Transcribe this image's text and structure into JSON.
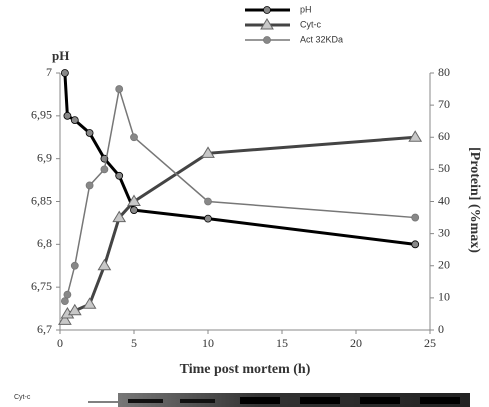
{
  "chart_data": {
    "type": "line",
    "x": [
      0.33,
      0.5,
      1,
      2,
      3,
      4,
      5,
      10,
      24
    ],
    "series": [
      {
        "name": "pH",
        "color": "#000000",
        "marker": "circle",
        "width": 3,
        "axis": "y",
        "values": [
          7,
          6.95,
          6.945,
          6.93,
          6.9,
          6.88,
          6.84,
          6.83,
          6.8
        ]
      },
      {
        "name": "Cyt-c",
        "color": "#444444",
        "marker": "triangle",
        "width": 3,
        "axis": "y2",
        "values": [
          3,
          5,
          6,
          8,
          20,
          35,
          40,
          55,
          60
        ]
      },
      {
        "name": "Act  32KDa",
        "color": "#777777",
        "marker": "circle",
        "width": 1.5,
        "axis": "y2",
        "values": [
          9,
          11,
          20,
          45,
          50,
          75,
          60,
          40,
          35
        ]
      }
    ],
    "xlim": [
      0,
      25
    ],
    "xticks": [
      0,
      5,
      10,
      15,
      20,
      25
    ],
    "ylim": [
      6.7,
      7
    ],
    "yticks": [
      {
        "value": 6.7,
        "label": "6,7"
      },
      {
        "value": 6.75,
        "label": "6,75"
      },
      {
        "value": 6.8,
        "label": "6,8"
      },
      {
        "value": 6.85,
        "label": "6,85"
      },
      {
        "value": 6.9,
        "label": "6,9"
      },
      {
        "value": 6.95,
        "label": "6,95"
      },
      7
    ],
    "y2lim": [
      0,
      80
    ],
    "y2ticks": [
      0,
      10,
      20,
      30,
      40,
      50,
      60,
      70,
      80
    ],
    "ylabel": "pH",
    "y2label": "[Protein] (%max)",
    "xlabel": "Time post mortem (h)",
    "blot_label": "Cyt-c"
  }
}
